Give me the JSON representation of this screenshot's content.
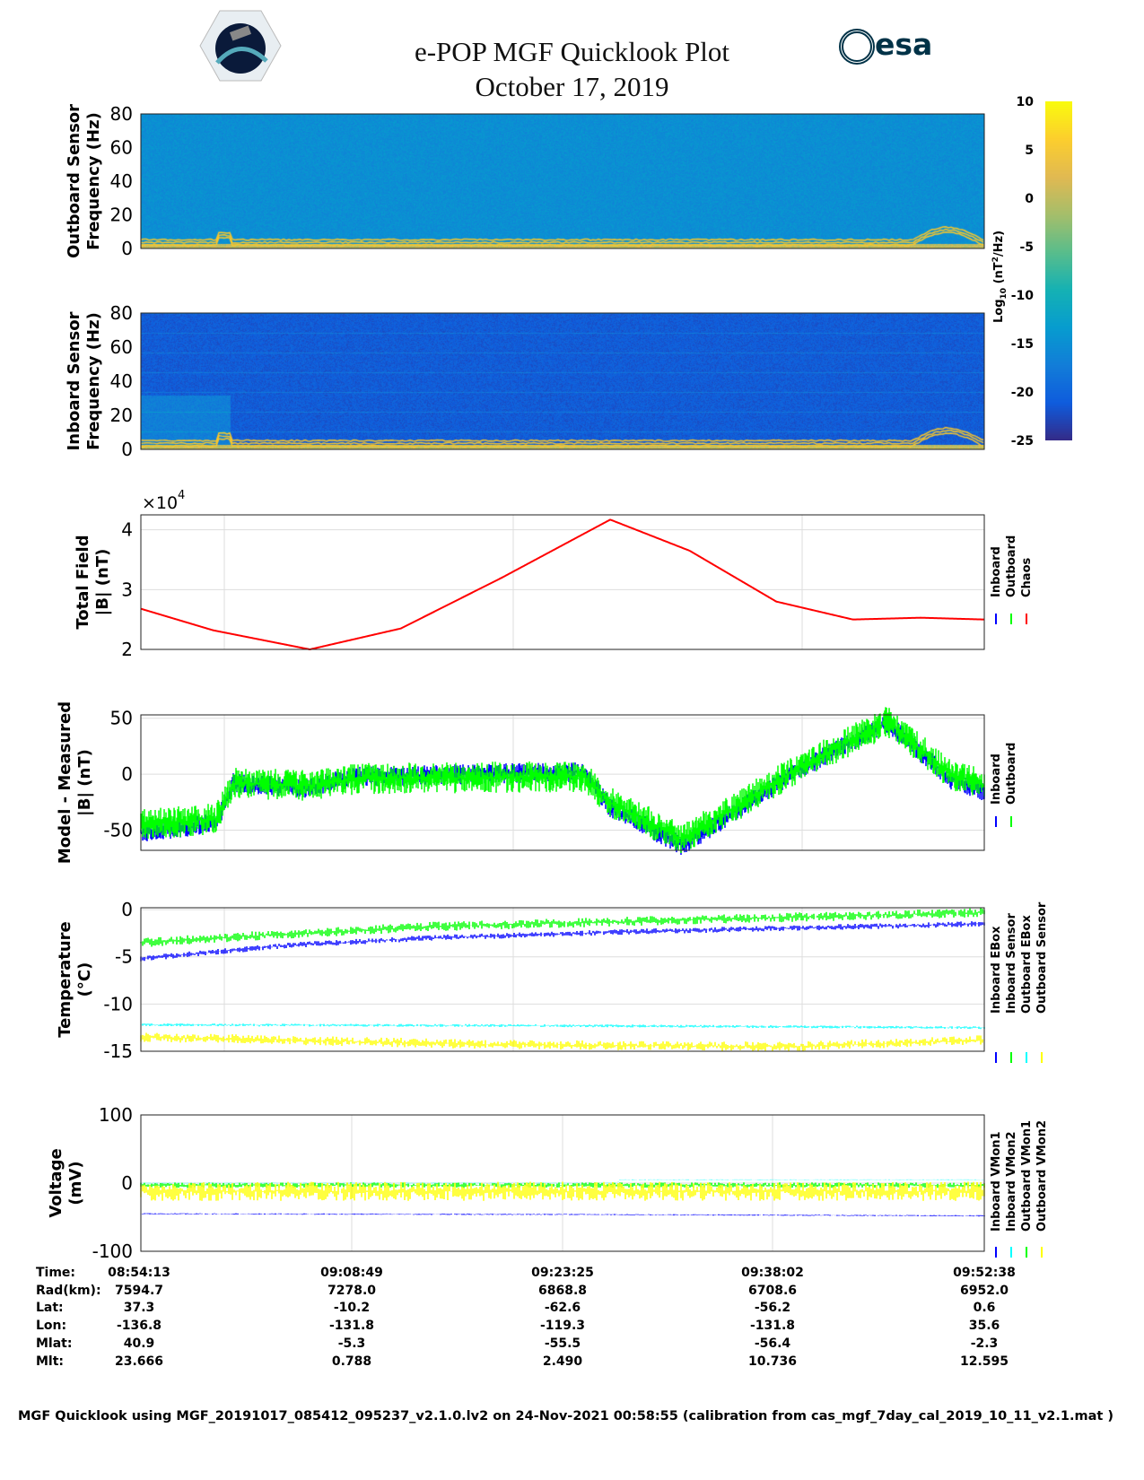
{
  "header": {
    "title": "e-POP MGF Quicklook Plot",
    "date": "October 17, 2019",
    "esa_logo": "esa",
    "cassiope_logo": "CASSIOPE"
  },
  "colors": {
    "inboard": "#0000ff",
    "outboard": "#00ff00",
    "chaos": "#ff0000",
    "cyan": "#00ffff",
    "yellow": "#ffff00",
    "axis": "#222222",
    "grid": "#dddddd"
  },
  "time_table": {
    "labels": [
      "Time:",
      "Rad(km):",
      "Lat:",
      "Lon:",
      "Mlat:",
      "Mlt:"
    ],
    "columns": [
      [
        "08:54:13",
        "7594.7",
        "37.3",
        "-136.8",
        "40.9",
        "23.666"
      ],
      [
        "09:08:49",
        "7278.0",
        "-10.2",
        "-131.8",
        "-5.3",
        "0.788"
      ],
      [
        "09:23:25",
        "6868.8",
        "-62.6",
        "-119.3",
        "-55.5",
        "2.490"
      ],
      [
        "09:38:02",
        "6708.6",
        "-56.2",
        "-131.8",
        "-56.4",
        "10.736"
      ],
      [
        "09:52:38",
        "6952.0",
        "0.6",
        "35.6",
        "-2.3",
        "12.595"
      ]
    ]
  },
  "footer": "MGF Quicklook using MGF_20191017_085412_095237_v2.1.0.lv2 on 24-Nov-2021 00:58:55 (calibration from cas_mgf_7day_cal_2019_10_11_v2.1.mat )",
  "chart_data": [
    {
      "type": "heatmap",
      "name": "outboard-spectrogram",
      "ylabel": [
        "Outboard Sensor",
        "Frequency (Hz)"
      ],
      "ylim": [
        0,
        80
      ],
      "yticks": [
        "0",
        "20",
        "40",
        "60",
        "80"
      ],
      "background_log_psd": -15
    },
    {
      "type": "heatmap",
      "name": "inboard-spectrogram",
      "ylabel": [
        "Inboard Sensor",
        "Frequency (Hz)"
      ],
      "ylim": [
        0,
        80
      ],
      "yticks": [
        "0",
        "20",
        "40",
        "60",
        "80"
      ],
      "background_log_psd": -21
    },
    {
      "type": "colorbar",
      "label": "Log10 (nT²/Hz)",
      "label_main": "Log",
      "label_sub": "10",
      "label_rest": " (nT",
      "label_sup": "2",
      "label_end": "/Hz)",
      "range": [
        -25,
        10
      ],
      "ticks": [
        "10",
        "5",
        "0",
        "-5",
        "-10",
        "-15",
        "-20",
        "-25"
      ]
    },
    {
      "type": "line",
      "name": "total-field",
      "ylabel": [
        "Total Field",
        "|B| (nT)"
      ],
      "ylim": [
        20000,
        42500
      ],
      "yticks": [
        "2",
        "3",
        "4"
      ],
      "ytick_values": [
        20000,
        30000,
        40000
      ],
      "multiplier": "×10",
      "multiplier_exp": "4",
      "xlim_min": [
        0,
        58.4
      ],
      "legend": [
        "Inboard",
        "Outboard",
        "Chaos"
      ],
      "series": [
        {
          "name": "Chaos",
          "points": [
            [
              0,
              26800
            ],
            [
              5,
              23200
            ],
            [
              11.7,
              20000
            ],
            [
              18,
              23500
            ],
            [
              25,
              32000
            ],
            [
              32.5,
              41700
            ],
            [
              38,
              36500
            ],
            [
              44,
              28000
            ],
            [
              49.3,
              25000
            ],
            [
              54,
              25300
            ],
            [
              58.4,
              25000
            ]
          ]
        }
      ]
    },
    {
      "type": "line",
      "name": "model-minus-measured",
      "ylabel": [
        "Model - Measured",
        "|B| (nT)"
      ],
      "ylim": [
        -68,
        53
      ],
      "yticks": [
        "-50",
        "0",
        "50"
      ],
      "ytick_values": [
        -50,
        0,
        50
      ],
      "legend": [
        "Inboard",
        "Outboard"
      ],
      "series": [
        {
          "name": "Outboard",
          "points": [
            [
              0,
              -45
            ],
            [
              5.2,
              -40
            ],
            [
              6.4,
              -8
            ],
            [
              11.4,
              -10
            ],
            [
              15.1,
              -4
            ],
            [
              30.6,
              -2
            ],
            [
              32.5,
              -25
            ],
            [
              37.5,
              -58
            ],
            [
              46.1,
              10
            ],
            [
              51.7,
              47
            ],
            [
              56.1,
              0
            ],
            [
              58.4,
              -10
            ]
          ]
        },
        {
          "name": "Inboard",
          "points": [
            [
              0,
              -52
            ],
            [
              5.2,
              -44
            ],
            [
              6.4,
              -8
            ],
            [
              11.4,
              -12
            ],
            [
              15.1,
              -2
            ],
            [
              30.6,
              2
            ],
            [
              32.5,
              -30
            ],
            [
              37.5,
              -64
            ],
            [
              46.1,
              8
            ],
            [
              51.7,
              46
            ],
            [
              56.1,
              -5
            ],
            [
              58.4,
              -15
            ]
          ]
        }
      ]
    },
    {
      "type": "line",
      "name": "temperature",
      "ylabel": [
        "Temperature",
        "(°C)"
      ],
      "ylim": [
        -15,
        0.2
      ],
      "yticks": [
        "0",
        "-5",
        "-10",
        "-15"
      ],
      "ytick_values": [
        0,
        -5,
        -10,
        -15
      ],
      "legend": [
        "Inboard EBox",
        "Inboard Sensor",
        "Outboard EBox",
        "Outboard Sensor"
      ],
      "series": [
        {
          "name": "Inboard EBox",
          "points": [
            [
              0,
              -5.2
            ],
            [
              10,
              -3.8
            ],
            [
              20,
              -3
            ],
            [
              35,
              -2.3
            ],
            [
              58.4,
              -1.5
            ]
          ]
        },
        {
          "name": "Inboard Sensor",
          "points": [
            [
              0,
              -3.5
            ],
            [
              10,
              -2.6
            ],
            [
              20,
              -1.8
            ],
            [
              35,
              -1.2
            ],
            [
              58.4,
              -0.3
            ]
          ]
        },
        {
          "name": "Outboard EBox",
          "points": [
            [
              0,
              -12.2
            ],
            [
              30,
              -12.3
            ],
            [
              58.4,
              -12.5
            ]
          ]
        },
        {
          "name": "Outboard Sensor",
          "points": [
            [
              0,
              -13.5
            ],
            [
              25,
              -14.3
            ],
            [
              45,
              -14.5
            ],
            [
              58.4,
              -13.8
            ]
          ]
        }
      ]
    },
    {
      "type": "line",
      "name": "voltage",
      "ylabel": [
        "Voltage",
        "(mV)"
      ],
      "ylim": [
        -100,
        100
      ],
      "yticks": [
        "100",
        "0",
        "-100"
      ],
      "ytick_values": [
        100,
        0,
        -100
      ],
      "legend": [
        "Inboard VMon1",
        "Inboard VMon2",
        "Outboard VMon1",
        "Outboard VMon2"
      ],
      "series": [
        {
          "name": "Inboard VMon1",
          "points": [
            [
              0,
              -45
            ],
            [
              30,
              -46
            ],
            [
              58.4,
              -48
            ]
          ]
        },
        {
          "name": "Inboard VMon2",
          "points": [
            [
              0,
              0
            ],
            [
              33,
              0
            ],
            [
              33.1,
              5
            ],
            [
              58.4,
              5
            ]
          ]
        },
        {
          "name": "Outboard VMon1",
          "points": [
            [
              0,
              -3
            ],
            [
              58.4,
              -3
            ]
          ]
        },
        {
          "name": "Outboard VMon2",
          "points": [
            [
              0,
              -12
            ],
            [
              58.4,
              -12
            ]
          ]
        }
      ]
    }
  ]
}
